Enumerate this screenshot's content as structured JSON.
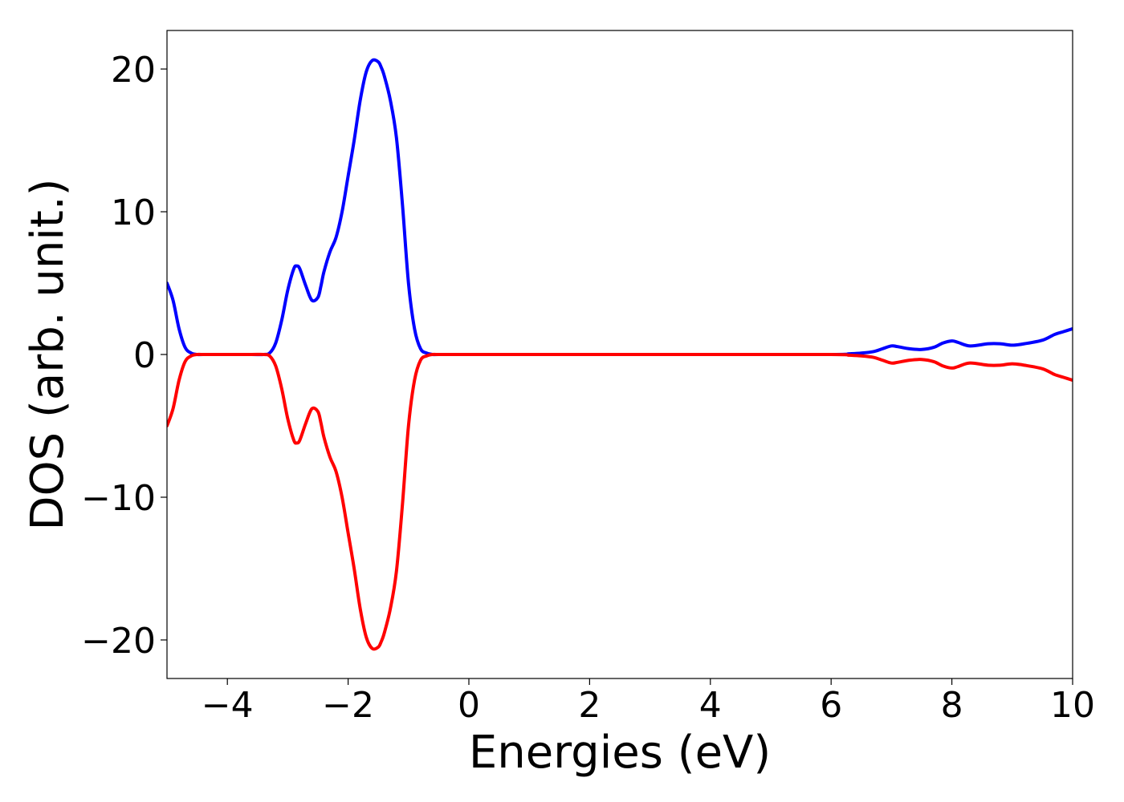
{
  "chart_data": {
    "type": "line",
    "title": "",
    "xlabel": "Energies (eV)",
    "ylabel": "DOS (arb. unit.)",
    "xlim": [
      -5,
      10
    ],
    "ylim": [
      -22.7,
      22.7
    ],
    "x_ticks": [
      -4,
      -2,
      0,
      2,
      4,
      6,
      8,
      10
    ],
    "x_tick_labels": [
      "−4",
      "−2",
      "0",
      "2",
      "4",
      "6",
      "8",
      "10"
    ],
    "y_ticks": [
      20,
      10,
      0,
      -10,
      -20
    ],
    "y_tick_labels": [
      "20",
      "10",
      "0",
      "−10",
      "−20"
    ],
    "grid": false,
    "legend": "none",
    "series": [
      {
        "color": "#0000ff",
        "x": [
          -5.0,
          -4.9,
          -4.8,
          -4.7,
          -4.6,
          -4.5,
          -4.4,
          -4.0,
          -3.6,
          -3.4,
          -3.3,
          -3.2,
          -3.1,
          -3.0,
          -2.9,
          -2.85,
          -2.8,
          -2.7,
          -2.6,
          -2.5,
          -2.45,
          -2.4,
          -2.3,
          -2.2,
          -2.1,
          -2.0,
          -1.9,
          -1.8,
          -1.7,
          -1.6,
          -1.5,
          -1.45,
          -1.4,
          -1.3,
          -1.2,
          -1.1,
          -1.0,
          -0.9,
          -0.8,
          -0.7,
          -0.6,
          -0.5,
          0.0,
          2.0,
          4.0,
          6.0,
          6.3,
          6.5,
          6.7,
          6.85,
          7.0,
          7.1,
          7.3,
          7.5,
          7.7,
          7.85,
          8.0,
          8.1,
          8.3,
          8.6,
          8.8,
          9.0,
          9.2,
          9.5,
          9.7,
          9.85,
          10.0
        ],
        "y": [
          5.0,
          3.8,
          1.8,
          0.5,
          0.1,
          0.0,
          0.0,
          0.0,
          0.0,
          0.0,
          0.1,
          0.8,
          2.4,
          4.5,
          6.0,
          6.2,
          6.0,
          4.8,
          3.8,
          4.0,
          4.8,
          5.8,
          7.2,
          8.2,
          10.0,
          12.5,
          15.0,
          17.8,
          19.8,
          20.6,
          20.5,
          20.1,
          19.5,
          17.8,
          15.2,
          10.5,
          5.0,
          1.8,
          0.4,
          0.1,
          0.0,
          0.0,
          0.0,
          0.0,
          0.0,
          0.0,
          0.05,
          0.1,
          0.2,
          0.4,
          0.6,
          0.55,
          0.4,
          0.35,
          0.5,
          0.8,
          0.95,
          0.85,
          0.6,
          0.75,
          0.75,
          0.65,
          0.75,
          1.0,
          1.4,
          1.6,
          1.8
        ]
      },
      {
        "color": "#ff0000",
        "x": [
          -5.0,
          -4.9,
          -4.8,
          -4.7,
          -4.6,
          -4.5,
          -4.4,
          -4.0,
          -3.6,
          -3.4,
          -3.3,
          -3.2,
          -3.1,
          -3.0,
          -2.9,
          -2.85,
          -2.8,
          -2.7,
          -2.6,
          -2.5,
          -2.45,
          -2.4,
          -2.3,
          -2.2,
          -2.1,
          -2.0,
          -1.9,
          -1.8,
          -1.7,
          -1.6,
          -1.5,
          -1.45,
          -1.4,
          -1.3,
          -1.2,
          -1.1,
          -1.0,
          -0.9,
          -0.8,
          -0.7,
          -0.6,
          -0.5,
          0.0,
          2.0,
          4.0,
          6.0,
          6.3,
          6.5,
          6.7,
          6.85,
          7.0,
          7.1,
          7.3,
          7.5,
          7.7,
          7.85,
          8.0,
          8.1,
          8.3,
          8.6,
          8.8,
          9.0,
          9.2,
          9.5,
          9.7,
          9.85,
          10.0
        ],
        "y": [
          -5.0,
          -3.8,
          -1.8,
          -0.5,
          -0.1,
          0.0,
          0.0,
          0.0,
          0.0,
          0.0,
          -0.1,
          -0.8,
          -2.4,
          -4.5,
          -6.0,
          -6.2,
          -6.0,
          -4.8,
          -3.8,
          -4.0,
          -4.8,
          -5.8,
          -7.2,
          -8.2,
          -10.0,
          -12.5,
          -15.0,
          -17.8,
          -19.8,
          -20.6,
          -20.5,
          -20.1,
          -19.5,
          -17.8,
          -15.2,
          -10.5,
          -5.0,
          -1.8,
          -0.4,
          -0.1,
          0.0,
          0.0,
          0.0,
          0.0,
          0.0,
          0.0,
          -0.05,
          -0.1,
          -0.2,
          -0.4,
          -0.6,
          -0.55,
          -0.4,
          -0.35,
          -0.5,
          -0.8,
          -0.95,
          -0.85,
          -0.6,
          -0.75,
          -0.75,
          -0.65,
          -0.75,
          -1.0,
          -1.4,
          -1.6,
          -1.8
        ]
      }
    ]
  }
}
